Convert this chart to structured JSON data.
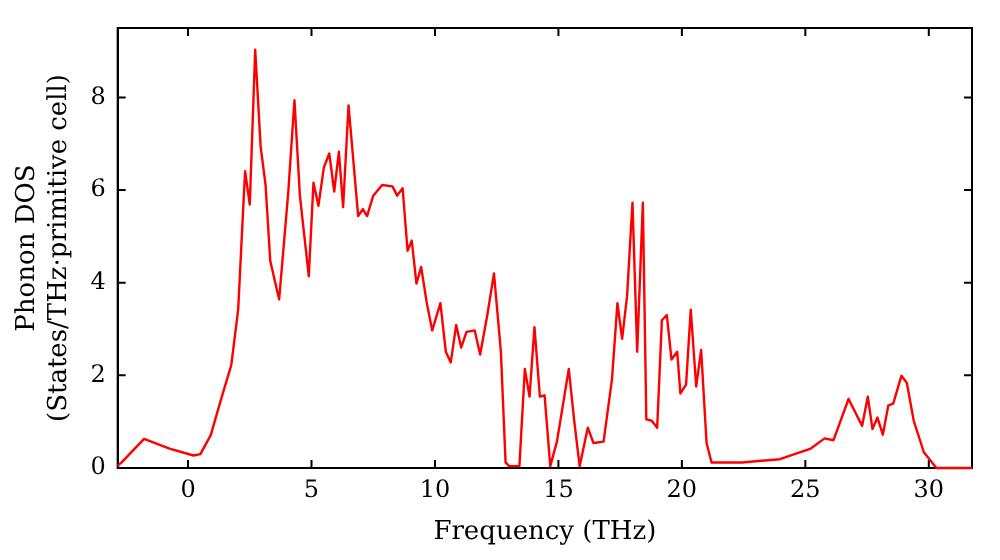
{
  "chart_data": {
    "type": "line",
    "xlabel": "Frequency (THz)",
    "ylabel": "Phonon DOS\n(States/THz·primitive cell)",
    "xlim": [
      -2.85,
      31.75
    ],
    "xticks": [
      0,
      5,
      10,
      15,
      20,
      25,
      30
    ],
    "ylim": [
      0,
      9.5
    ],
    "yticks": [
      0,
      2,
      4,
      6,
      8
    ],
    "grid": false,
    "legend": false,
    "marker": "none",
    "line_style": "solid",
    "series": [
      {
        "color": "#ff0000",
        "x": [
          -2.85,
          -2.69,
          -1.78,
          -0.75,
          0.22,
          0.5,
          0.92,
          1.33,
          1.75,
          2.03,
          2.31,
          2.5,
          2.72,
          2.94,
          3.14,
          3.33,
          3.69,
          4.06,
          4.31,
          4.53,
          4.89,
          5.08,
          5.28,
          5.5,
          5.72,
          5.92,
          6.11,
          6.28,
          6.5,
          6.89,
          7.08,
          7.25,
          7.5,
          7.86,
          8.28,
          8.47,
          8.69,
          8.89,
          9.06,
          9.25,
          9.44,
          9.67,
          9.89,
          10.22,
          10.44,
          10.64,
          10.86,
          11.06,
          11.28,
          11.61,
          11.83,
          12.11,
          12.39,
          12.67,
          12.86,
          13.0,
          13.42,
          13.64,
          13.83,
          14.03,
          14.25,
          14.44,
          14.67,
          14.94,
          15.17,
          15.42,
          15.64,
          15.86,
          16.19,
          16.42,
          16.83,
          17.17,
          17.39,
          17.58,
          17.78,
          18.0,
          18.19,
          18.42,
          18.56,
          18.78,
          19.0,
          19.19,
          19.39,
          19.58,
          19.81,
          19.94,
          20.17,
          20.36,
          20.58,
          20.78,
          21.0,
          21.2,
          22.44,
          23.97,
          25.22,
          25.78,
          26.14,
          26.75,
          27.3,
          27.53,
          27.72,
          27.92,
          28.14,
          28.36,
          28.56,
          28.89,
          29.11,
          29.39,
          29.8,
          30.31,
          31.75
        ],
        "values": [
          0.05,
          0.12,
          0.63,
          0.42,
          0.27,
          0.3,
          0.71,
          1.47,
          2.22,
          3.42,
          6.41,
          5.69,
          9.03,
          6.94,
          6.11,
          4.47,
          3.64,
          5.96,
          7.94,
          5.88,
          4.14,
          6.16,
          5.66,
          6.49,
          6.79,
          5.97,
          6.83,
          5.63,
          7.83,
          5.44,
          5.59,
          5.44,
          5.88,
          6.11,
          6.08,
          5.88,
          6.04,
          4.69,
          4.91,
          3.98,
          4.34,
          3.56,
          2.97,
          3.56,
          2.51,
          2.28,
          3.09,
          2.6,
          2.94,
          2.97,
          2.45,
          3.27,
          4.2,
          2.51,
          0.12,
          0.04,
          0.04,
          2.14,
          1.54,
          3.04,
          1.54,
          1.57,
          0.04,
          0.57,
          1.32,
          2.14,
          1.02,
          0.04,
          0.87,
          0.54,
          0.57,
          1.92,
          3.56,
          2.79,
          3.71,
          5.73,
          2.51,
          5.73,
          1.05,
          1.02,
          0.87,
          3.19,
          3.3,
          2.34,
          2.51,
          1.61,
          1.8,
          3.42,
          1.76,
          2.55,
          0.54,
          0.12,
          0.12,
          0.19,
          0.42,
          0.64,
          0.6,
          1.49,
          0.91,
          1.54,
          0.84,
          1.09,
          0.72,
          1.35,
          1.39,
          1.99,
          1.84,
          1.02,
          0.34,
          0.0,
          0.0
        ]
      }
    ]
  }
}
